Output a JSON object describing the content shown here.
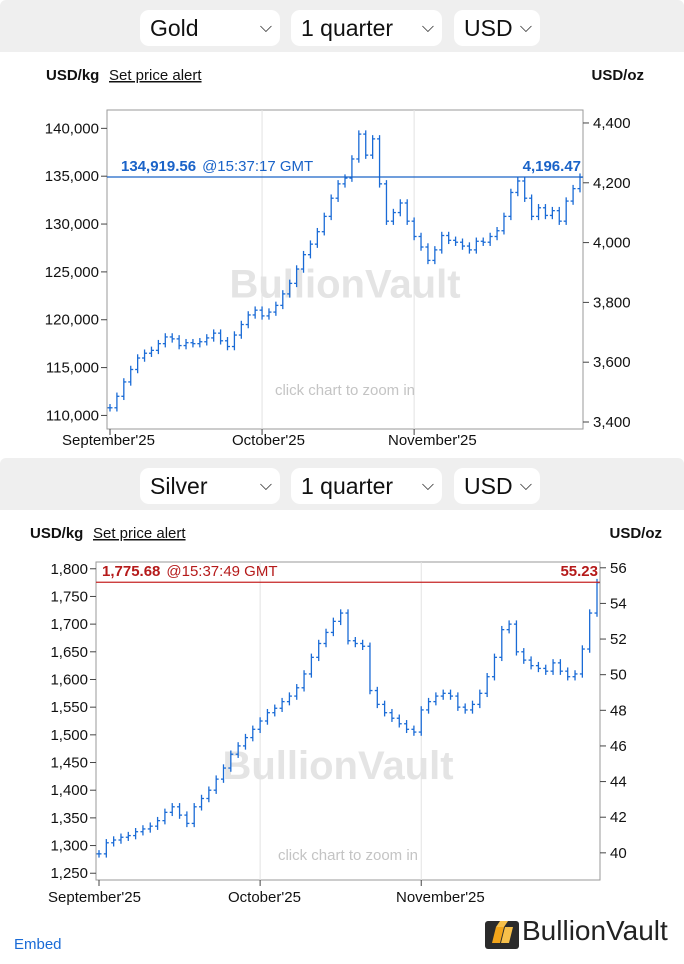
{
  "charts": [
    {
      "metal_select": "Gold",
      "period_select": "1 quarter",
      "currency_select": "USD",
      "unit_left": "USD/kg",
      "alert_label": "Set price alert",
      "unit_right": "USD/oz",
      "price_label": "134,919.56",
      "time_label": "@15:37:17 GMT",
      "oz_price_label": "4,196.47",
      "watermark": "BullionVault",
      "zoom_hint": "click chart to zoom in",
      "price_color": "#1a63c8",
      "line_color": "#1a63c8",
      "candle_color": "#1a6bd6",
      "chart_data": {
        "type": "line",
        "current": 134919.56,
        "current_oz": 4196.47,
        "ylim": [
          109000,
          141500
        ],
        "y2lim": [
          3390,
          4430
        ],
        "y_ticks": [
          110000,
          115000,
          120000,
          125000,
          130000,
          135000,
          140000
        ],
        "y_tick_labels": [
          "110,000",
          "115,000",
          "120,000",
          "125,000",
          "130,000",
          "135,000",
          "140,000"
        ],
        "y2_ticks": [
          3400,
          3600,
          3800,
          4000,
          4200,
          4400
        ],
        "y2_tick_labels": [
          "3,400",
          "3,600",
          "3,800",
          "4,000",
          "4,200",
          "4,400"
        ],
        "x_labels": [
          "September'25",
          "October'25",
          "November'25"
        ],
        "x_label_index": [
          0,
          22,
          44
        ],
        "n": 69,
        "values": [
          110800,
          112000,
          113500,
          114800,
          116000,
          116500,
          116800,
          117500,
          118200,
          118000,
          117300,
          117600,
          117500,
          117700,
          118100,
          118600,
          117800,
          117200,
          118400,
          119500,
          120500,
          121000,
          120400,
          120800,
          121500,
          122700,
          123800,
          125300,
          126800,
          127900,
          129200,
          130800,
          132700,
          134200,
          134800,
          136800,
          139400,
          137200,
          138900,
          134200,
          130300,
          131200,
          132200,
          130300,
          128700,
          127600,
          126200,
          127300,
          128800,
          128300,
          128100,
          127700,
          127300,
          128200,
          128100,
          128700,
          129300,
          130800,
          133300,
          134500,
          132700,
          130800,
          131700,
          130900,
          131400,
          130300,
          132400,
          133700,
          134900
        ]
      }
    },
    {
      "metal_select": "Silver",
      "period_select": "1 quarter",
      "currency_select": "USD",
      "unit_left": "USD/kg",
      "alert_label": "Set price alert",
      "unit_right": "USD/oz",
      "price_label": "1,775.68",
      "time_label": "@15:37:49 GMT",
      "oz_price_label": "55.23",
      "watermark": "BullionVault",
      "zoom_hint": "click chart to zoom in",
      "price_color": "#b51a1a",
      "line_color": "#c62424",
      "candle_color": "#1a6bd6",
      "chart_data": {
        "type": "line",
        "current": 1775.68,
        "current_oz": 55.23,
        "ylim": [
          1245,
          1805
        ],
        "y2lim": [
          38.7,
          56.1
        ],
        "y_ticks": [
          1250,
          1300,
          1350,
          1400,
          1450,
          1500,
          1550,
          1600,
          1650,
          1700,
          1750,
          1800
        ],
        "y_tick_labels": [
          "1,250",
          "1,300",
          "1,350",
          "1,400",
          "1,450",
          "1,500",
          "1,550",
          "1,600",
          "1,650",
          "1,700",
          "1,750",
          "1,800"
        ],
        "y2_ticks": [
          40,
          42,
          44,
          46,
          48,
          50,
          52,
          54,
          56
        ],
        "y2_tick_labels": [
          "40",
          "42",
          "44",
          "46",
          "48",
          "50",
          "52",
          "54",
          "56"
        ],
        "x_labels": [
          "September'25",
          "October'25",
          "November'25"
        ],
        "x_label_index": [
          0,
          22,
          44
        ],
        "n": 69,
        "values": [
          1285,
          1305,
          1310,
          1315,
          1318,
          1325,
          1330,
          1335,
          1345,
          1360,
          1370,
          1355,
          1340,
          1370,
          1385,
          1400,
          1420,
          1440,
          1465,
          1480,
          1495,
          1510,
          1525,
          1540,
          1548,
          1560,
          1570,
          1585,
          1610,
          1640,
          1665,
          1685,
          1705,
          1720,
          1670,
          1665,
          1660,
          1580,
          1555,
          1540,
          1530,
          1520,
          1510,
          1505,
          1545,
          1560,
          1570,
          1575,
          1570,
          1550,
          1545,
          1555,
          1575,
          1605,
          1640,
          1690,
          1700,
          1650,
          1635,
          1625,
          1620,
          1615,
          1630,
          1615,
          1605,
          1610,
          1655,
          1720,
          1775
        ]
      }
    }
  ],
  "footer": {
    "embed_label": "Embed",
    "brand_name": "BullionVault",
    "logo_icon": "bullionvault-logo-icon"
  }
}
